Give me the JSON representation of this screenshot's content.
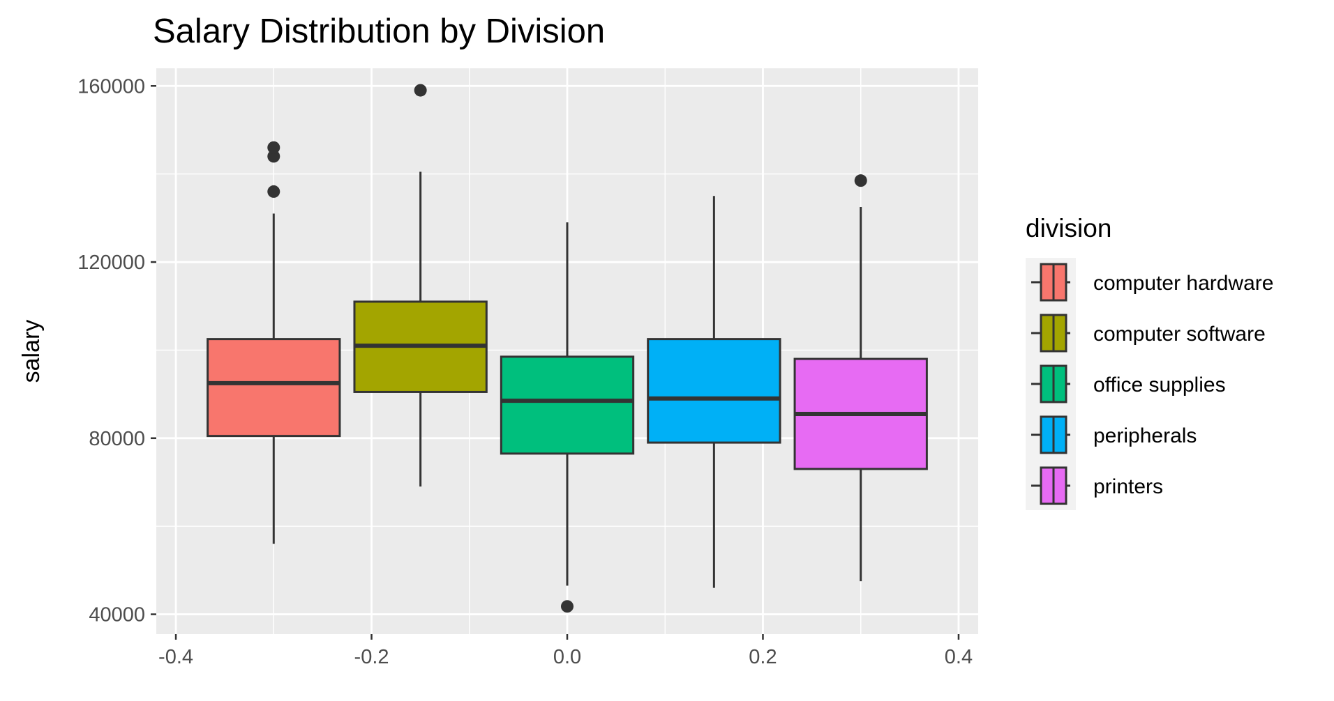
{
  "chart_data": {
    "type": "boxplot",
    "title": "Salary Distribution by Division",
    "xlabel": "",
    "ylabel": "salary",
    "xlim": [
      -0.4,
      0.4
    ],
    "ylim": [
      40000,
      160000
    ],
    "x_ticks": [
      {
        "value": -0.4,
        "label": "-0.4"
      },
      {
        "value": -0.2,
        "label": "-0.2"
      },
      {
        "value": 0.0,
        "label": "0.0"
      },
      {
        "value": 0.2,
        "label": "0.2"
      },
      {
        "value": 0.4,
        "label": "0.4"
      }
    ],
    "y_ticks": [
      {
        "value": 40000,
        "label": "40000"
      },
      {
        "value": 80000,
        "label": "80000"
      },
      {
        "value": 120000,
        "label": "120000"
      },
      {
        "value": 160000,
        "label": "160000"
      }
    ],
    "grid": true,
    "legend": {
      "title": "division",
      "position": "right"
    },
    "series": [
      {
        "name": "computer hardware",
        "color": "#F8766D",
        "x_center": -0.3,
        "x_range": [
          -0.3675,
          -0.2325
        ],
        "whisker_low": 56000,
        "q1": 80500,
        "median": 92500,
        "q3": 102500,
        "whisker_high": 131000,
        "outliers": [
          136000,
          144000,
          146000
        ]
      },
      {
        "name": "computer software",
        "color": "#A3A500",
        "x_center": -0.15,
        "x_range": [
          -0.2175,
          -0.0825
        ],
        "whisker_low": 69000,
        "q1": 90500,
        "median": 101000,
        "q3": 111000,
        "whisker_high": 140500,
        "outliers": [
          159000
        ]
      },
      {
        "name": "office supplies",
        "color": "#00BF7D",
        "x_center": 0.0,
        "x_range": [
          -0.0675,
          0.0675
        ],
        "whisker_low": 46500,
        "q1": 76500,
        "median": 88500,
        "q3": 98500,
        "whisker_high": 129000,
        "outliers": [
          41800
        ]
      },
      {
        "name": "peripherals",
        "color": "#00B0F6",
        "x_center": 0.15,
        "x_range": [
          0.0825,
          0.2175
        ],
        "whisker_low": 46000,
        "q1": 79000,
        "median": 89000,
        "q3": 102500,
        "whisker_high": 135000,
        "outliers": []
      },
      {
        "name": "printers",
        "color": "#E76BF3",
        "x_center": 0.3,
        "x_range": [
          0.2325,
          0.3675
        ],
        "whisker_low": 47500,
        "q1": 73000,
        "median": 85500,
        "q3": 98000,
        "whisker_high": 132500,
        "outliers": [
          138500
        ]
      }
    ]
  }
}
